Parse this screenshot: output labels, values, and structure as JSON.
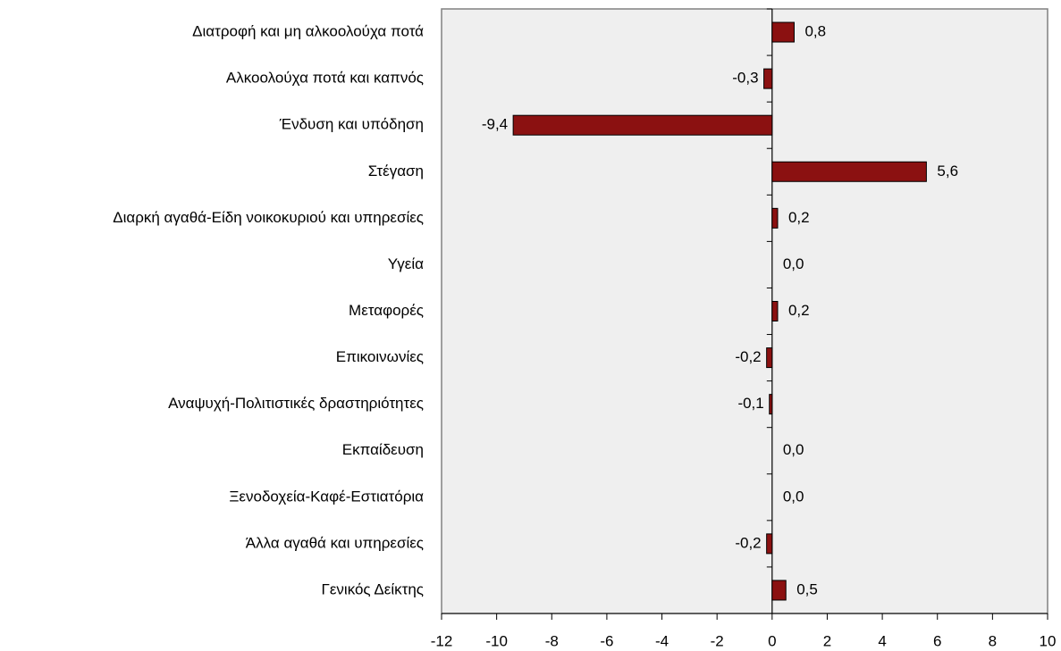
{
  "chart_data": {
    "type": "bar",
    "orientation": "horizontal",
    "categories": [
      "Διατροφή και μη αλκοολούχα ποτά",
      "Αλκοολούχα ποτά και καπνός",
      "Ένδυση και υπόδηση",
      "Στέγαση",
      "Διαρκή αγαθά-Είδη νοικοκυριού και υπηρεσίες",
      "Υγεία",
      "Μεταφορές",
      "Επικοινωνίες",
      "Αναψυχή-Πολιτιστικές δραστηριότητες",
      "Εκπαίδευση",
      "Ξενοδοχεία-Καφέ-Εστιατόρια",
      "Άλλα αγαθά και υπηρεσίες",
      "Γενικός Δείκτης"
    ],
    "values": [
      0.8,
      -0.3,
      -9.4,
      5.6,
      0.2,
      0.0,
      0.2,
      -0.2,
      -0.1,
      0.0,
      0.0,
      -0.2,
      0.5
    ],
    "value_labels": [
      "0,8",
      "-0,3",
      "-9,4",
      "5,6",
      "0,2",
      "0,0",
      "0,2",
      "-0,2",
      "-0,1",
      "0,0",
      "0,0",
      "-0,2",
      "0,5"
    ],
    "color": "#8b1111",
    "xlim": [
      -12,
      10
    ],
    "xticks": [
      -12,
      -10,
      -8,
      -6,
      -4,
      -2,
      0,
      2,
      4,
      6,
      8,
      10
    ]
  }
}
